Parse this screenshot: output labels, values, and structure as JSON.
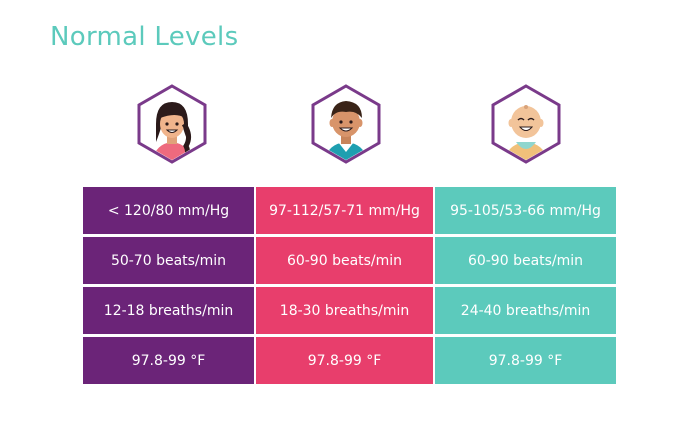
{
  "title": "Normal Levels",
  "colors": {
    "title": "#5ccabc",
    "adult": "#6b2478",
    "child": "#e83e6c",
    "infant": "#5ccabc",
    "hexagon": "#7a3a8a"
  },
  "avatars": [
    {
      "icon": "adult-woman-icon"
    },
    {
      "icon": "child-boy-icon"
    },
    {
      "icon": "infant-baby-icon"
    }
  ],
  "rows": [
    {
      "cells": [
        "< 120/80 mm/Hg",
        "97-112/57-71 mm/Hg",
        "95-105/53-66 mm/Hg"
      ]
    },
    {
      "cells": [
        "50-70 beats/min",
        "60-90 beats/min",
        "60-90 beats/min"
      ]
    },
    {
      "cells": [
        "12-18 breaths/min",
        "18-30 breaths/min",
        "24-40 breaths/min"
      ]
    },
    {
      "cells": [
        "97.8-99 °F",
        "97.8-99 °F",
        "97.8-99 °F"
      ]
    }
  ]
}
